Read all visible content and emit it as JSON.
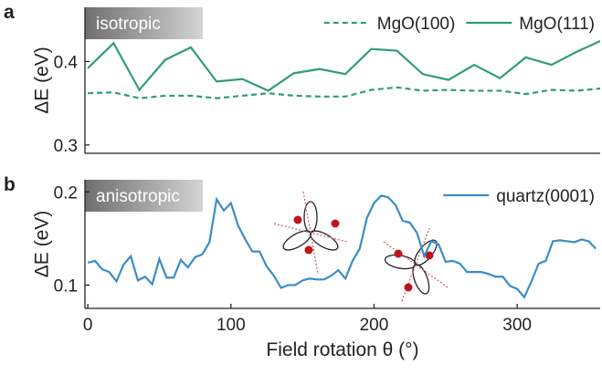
{
  "chart_data": [
    {
      "type": "line",
      "panel_label": "a",
      "tag": "isotropic",
      "ylabel": "ΔE (eV)",
      "xlim": [
        -2,
        358
      ],
      "ylim": [
        0.29,
        0.465
      ],
      "yticks": [
        0.3,
        0.4
      ],
      "legend": "upper right",
      "series": [
        {
          "name": "MgO(100)",
          "color": "#2f9c78",
          "dash": "dashed",
          "x": [
            0,
            18,
            36,
            54,
            72,
            90,
            108,
            126,
            144,
            162,
            180,
            198,
            216,
            234,
            252,
            270,
            288,
            306,
            324,
            342,
            360
          ],
          "values": [
            0.362,
            0.363,
            0.356,
            0.359,
            0.359,
            0.356,
            0.359,
            0.362,
            0.359,
            0.358,
            0.358,
            0.366,
            0.369,
            0.365,
            0.366,
            0.365,
            0.365,
            0.361,
            0.366,
            0.365,
            0.368
          ]
        },
        {
          "name": "MgO(111)",
          "color": "#2f9c78",
          "dash": "solid",
          "x": [
            0,
            18,
            36,
            54,
            72,
            90,
            108,
            126,
            144,
            162,
            180,
            198,
            216,
            234,
            252,
            270,
            288,
            306,
            324,
            342,
            360
          ],
          "values": [
            0.392,
            0.422,
            0.366,
            0.402,
            0.417,
            0.376,
            0.379,
            0.365,
            0.386,
            0.391,
            0.385,
            0.415,
            0.413,
            0.385,
            0.378,
            0.396,
            0.38,
            0.405,
            0.396,
            0.412,
            0.426
          ]
        }
      ]
    },
    {
      "type": "line",
      "panel_label": "b",
      "tag": "anisotropic",
      "ylabel": "ΔE (eV)",
      "xlabel": "Field rotation θ (°)",
      "xlim": [
        -2,
        358
      ],
      "ylim": [
        0.075,
        0.213
      ],
      "yticks": [
        0.1,
        0.2
      ],
      "xticks": [
        0,
        100,
        200,
        300
      ],
      "legend": "upper right",
      "series": [
        {
          "name": "quartz(0001)",
          "color": "#3a8dc6",
          "dash": "solid",
          "x": [
            0,
            5,
            10,
            15,
            20,
            25,
            30,
            35,
            40,
            45,
            50,
            55,
            60,
            65,
            70,
            75,
            80,
            85,
            90,
            95,
            100,
            105,
            110,
            115,
            120,
            125,
            130,
            135,
            140,
            145,
            150,
            155,
            160,
            165,
            170,
            175,
            180,
            185,
            190,
            195,
            200,
            205,
            210,
            215,
            220,
            225,
            230,
            235,
            240,
            245,
            250,
            255,
            260,
            265,
            270,
            275,
            280,
            285,
            290,
            295,
            300,
            305,
            310,
            315,
            320,
            325,
            330,
            335,
            340,
            345,
            350,
            355
          ],
          "values": [
            0.124,
            0.126,
            0.117,
            0.114,
            0.104,
            0.122,
            0.131,
            0.105,
            0.109,
            0.101,
            0.128,
            0.108,
            0.108,
            0.127,
            0.119,
            0.13,
            0.133,
            0.146,
            0.192,
            0.18,
            0.188,
            0.164,
            0.149,
            0.136,
            0.136,
            0.12,
            0.11,
            0.097,
            0.1,
            0.1,
            0.105,
            0.107,
            0.106,
            0.106,
            0.11,
            0.116,
            0.107,
            0.126,
            0.139,
            0.172,
            0.188,
            0.196,
            0.194,
            0.186,
            0.169,
            0.167,
            0.156,
            0.131,
            0.147,
            0.144,
            0.125,
            0.126,
            0.123,
            0.114,
            0.114,
            0.114,
            0.112,
            0.109,
            0.109,
            0.099,
            0.096,
            0.087,
            0.104,
            0.123,
            0.126,
            0.147,
            0.148,
            0.147,
            0.146,
            0.149,
            0.147,
            0.139
          ]
        }
      ]
    }
  ]
}
